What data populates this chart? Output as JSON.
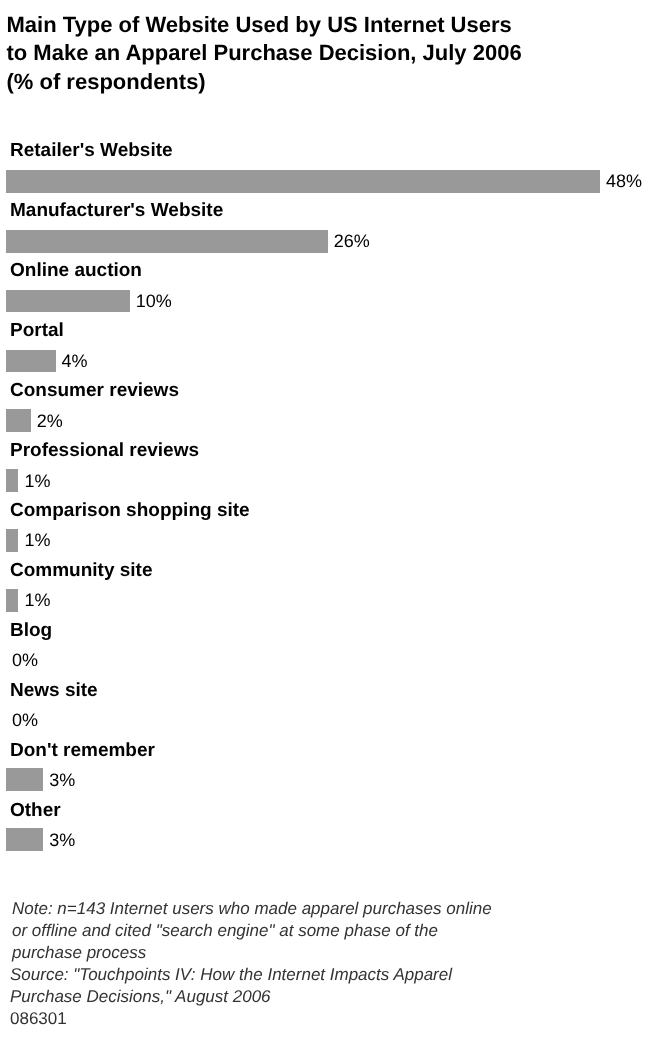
{
  "chart_data": {
    "type": "bar",
    "orientation": "horizontal",
    "title": "Main Type of Website Used by US Internet Users to Make an Apparel Purchase Decision, July 2006 (% of respondents)",
    "categories": [
      "Retailer's Website",
      "Manufacturer's Website",
      "Online auction",
      "Portal",
      "Consumer reviews",
      "Professional reviews",
      "Comparison shopping site",
      "Community site",
      "Blog",
      "News site",
      "Don't remember",
      "Other"
    ],
    "values": [
      48,
      26,
      10,
      4,
      2,
      1,
      1,
      1,
      0,
      0,
      3,
      3
    ],
    "value_labels": [
      "48%",
      "26%",
      "10%",
      "4%",
      "2%",
      "1%",
      "1%",
      "1%",
      "0%",
      "0%",
      "3%",
      "3%"
    ],
    "color": "#999999",
    "annotations": [
      "Note: n=143 Internet users who made apparel purchases online or offline and cited \"search engine\" at some phase of the purchase process",
      "Source: \"Touchpoints IV: How the Internet Impacts Apparel Purchase Decisions,\" August 2006",
      "086301"
    ]
  }
}
